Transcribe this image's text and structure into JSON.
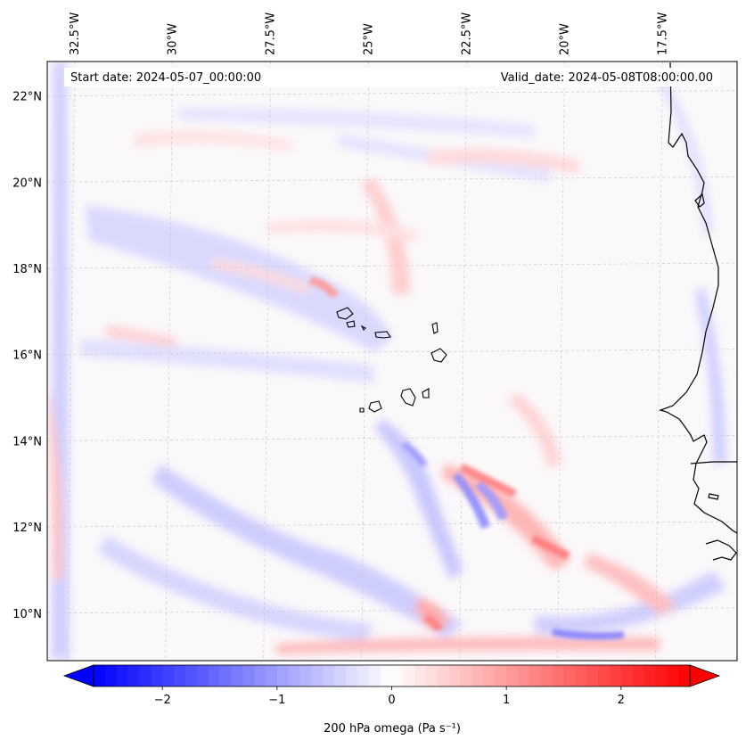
{
  "header": {
    "start_date": "Start date: 2024-05-07_00:00:00",
    "valid_date": "Valid_date: 2024-05-08T08:00:00.00"
  },
  "map": {
    "extent_lon": [
      -33.2,
      -15.6
    ],
    "extent_lat": [
      8.9,
      22.8
    ],
    "lon_labels": [
      {
        "label": "32.5°W",
        "lon": -32.5
      },
      {
        "label": "30°W",
        "lon": -30.0
      },
      {
        "label": "27.5°W",
        "lon": -27.5
      },
      {
        "label": "25°W",
        "lon": -25.0
      },
      {
        "label": "22.5°W",
        "lon": -22.5
      },
      {
        "label": "20°W",
        "lon": -20.0
      },
      {
        "label": "17.5°W",
        "lon": -17.5
      }
    ],
    "lat_labels": [
      {
        "label": "22°N",
        "lat": 22
      },
      {
        "label": "20°N",
        "lat": 20
      },
      {
        "label": "18°N",
        "lat": 18
      },
      {
        "label": "16°N",
        "lat": 16
      },
      {
        "label": "14°N",
        "lat": 14
      },
      {
        "label": "12°N",
        "lat": 12
      },
      {
        "label": "10°N",
        "lat": 10
      }
    ],
    "gridlines": true
  },
  "colorbar": {
    "label": "200 hPa omega (Pa s⁻¹)",
    "ticks": [
      "−2",
      "−1",
      "0",
      "1",
      "2"
    ],
    "tick_values": [
      -2,
      -1,
      0,
      1,
      2
    ],
    "range": [
      -2.6,
      2.6
    ],
    "extend": "both",
    "colormap": "bwr",
    "colors": {
      "negative": "#0000ff",
      "zero": "#ffffff",
      "positive": "#ff0000"
    }
  }
}
